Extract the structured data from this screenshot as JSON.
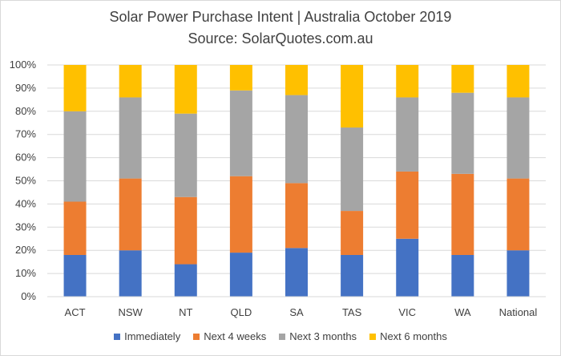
{
  "chart_data": {
    "type": "bar",
    "stacked": true,
    "title": "Solar Power Purchase Intent | Australia October 2019",
    "subtitle": "Source: SolarQuotes.com.au",
    "categories": [
      "ACT",
      "NSW",
      "NT",
      "QLD",
      "SA",
      "TAS",
      "VIC",
      "WA",
      "National"
    ],
    "series": [
      {
        "name": "Immediately",
        "color": "#4472c4",
        "values": [
          18,
          20,
          14,
          19,
          21,
          18,
          25,
          18,
          20
        ]
      },
      {
        "name": "Next 4 weeks",
        "color": "#ed7d31",
        "values": [
          23,
          31,
          29,
          33,
          28,
          19,
          29,
          35,
          31
        ]
      },
      {
        "name": "Next 3 months",
        "color": "#a5a5a5",
        "values": [
          39,
          35,
          36,
          37,
          38,
          36,
          32,
          35,
          35
        ]
      },
      {
        "name": "Next 6 months",
        "color": "#ffc000",
        "values": [
          20,
          14,
          21,
          11,
          13,
          27,
          14,
          12,
          14
        ]
      }
    ],
    "ylim": [
      0,
      100
    ],
    "yticks": [
      "0%",
      "10%",
      "20%",
      "30%",
      "40%",
      "50%",
      "60%",
      "70%",
      "80%",
      "90%",
      "100%"
    ],
    "grid": true,
    "legend_position": "bottom"
  }
}
